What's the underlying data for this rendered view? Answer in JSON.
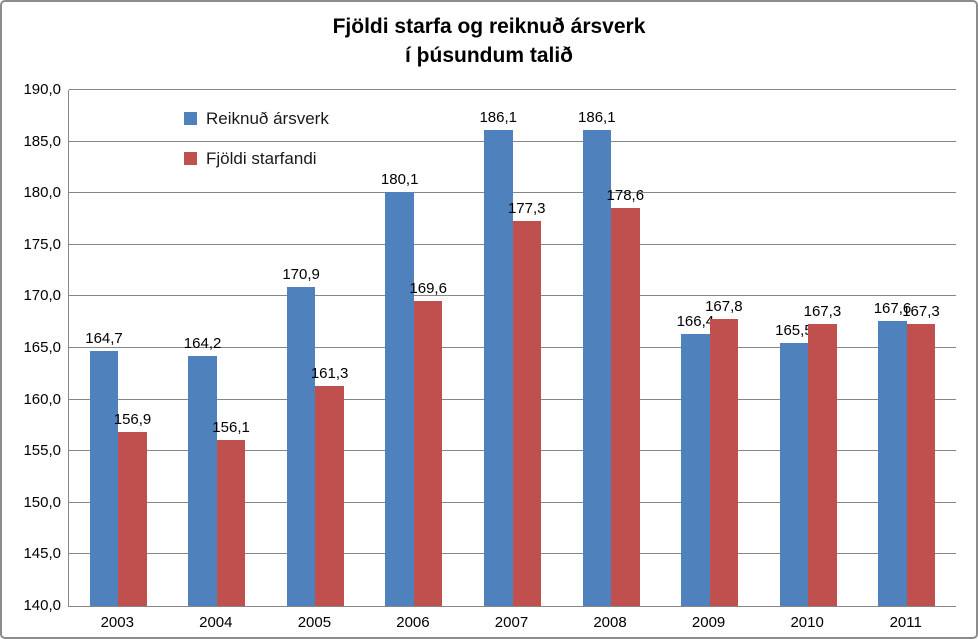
{
  "title": {
    "line1": "Fjöldi starfa og reiknuð ársverk",
    "line2": "í þúsundum talið"
  },
  "chart_data": {
    "type": "bar",
    "title": "Fjöldi starfa og reiknuð ársverk í þúsundum talið",
    "categories": [
      "2003",
      "2004",
      "2005",
      "2006",
      "2007",
      "2008",
      "2009",
      "2010",
      "2011"
    ],
    "series": [
      {
        "name": "Reiknuð ársverk",
        "color": "#4F81BD",
        "values": [
          164.7,
          164.2,
          170.9,
          180.1,
          186.1,
          186.1,
          166.4,
          165.5,
          167.6
        ],
        "labels": [
          "164,7",
          "164,2",
          "170,9",
          "180,1",
          "186,1",
          "186,1",
          "166,4",
          "165,5",
          "167,6"
        ]
      },
      {
        "name": "Fjöldi starfandi",
        "color": "#C0504D",
        "values": [
          156.9,
          156.1,
          161.3,
          169.6,
          177.3,
          178.6,
          167.8,
          167.3,
          167.3
        ],
        "labels": [
          "156,9",
          "156,1",
          "161,3",
          "169,6",
          "177,3",
          "178,6",
          "167,8",
          "167,3",
          "167,3"
        ]
      }
    ],
    "y_axis": {
      "min": 140,
      "max": 190,
      "step": 5,
      "tick_labels": [
        "140,0",
        "145,0",
        "150,0",
        "155,0",
        "160,0",
        "165,0",
        "170,0",
        "175,0",
        "180,0",
        "185,0",
        "190,0"
      ]
    },
    "xlabel": "",
    "ylabel": "",
    "grid": true,
    "legend_position": "inside-top-left",
    "gridline_color": "#878787",
    "axis_color": "#878787",
    "text_color": "#000000"
  }
}
